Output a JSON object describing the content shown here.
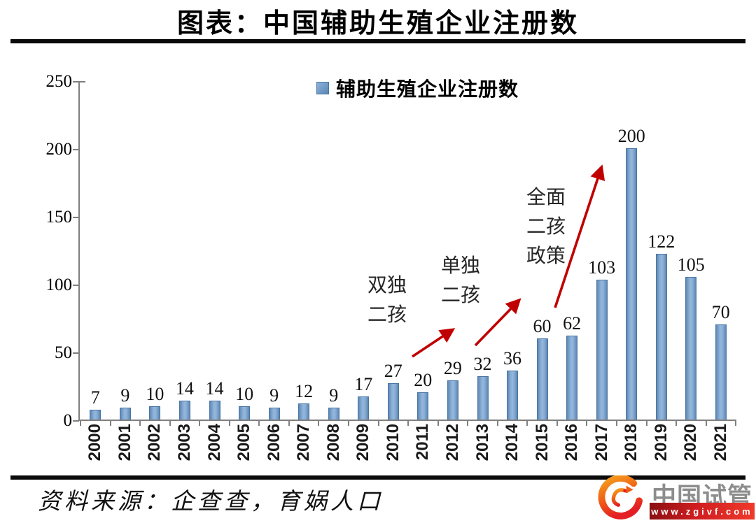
{
  "header": {
    "title": "图表：中国辅助生殖企业注册数"
  },
  "chart_data": {
    "type": "bar",
    "title": "图表：中国辅助生殖企业注册数",
    "legend": "辅助生殖企业注册数",
    "legend_position": "top-center",
    "categories": [
      "2000",
      "2001",
      "2002",
      "2003",
      "2004",
      "2005",
      "2006",
      "2007",
      "2008",
      "2009",
      "2010",
      "2011",
      "2012",
      "2013",
      "2014",
      "2015",
      "2016",
      "2017",
      "2018",
      "2019",
      "2020",
      "2021"
    ],
    "values": [
      7,
      9,
      10,
      14,
      14,
      10,
      9,
      12,
      9,
      17,
      27,
      20,
      29,
      32,
      36,
      60,
      62,
      103,
      200,
      122,
      105,
      70
    ],
    "ylim": [
      0,
      250
    ],
    "yticks": [
      0,
      50,
      100,
      150,
      200,
      250
    ],
    "grid": false,
    "bar_color": "#7aa3cd",
    "bar_edge_color": "#4a76a4",
    "arrow_color": "#c00000",
    "annotations": [
      {
        "label": "双独二孩",
        "lines": [
          "双独",
          "二孩"
        ]
      },
      {
        "label": "单独二孩",
        "lines": [
          "单独",
          "二孩"
        ]
      },
      {
        "label": "全面二孩政策",
        "lines": [
          "全面",
          "二孩",
          "政策"
        ]
      }
    ]
  },
  "footer": {
    "source": "资料来源：企查查，育娲人口"
  },
  "logo": {
    "name": "中国试管",
    "url": "www.zgivf.com"
  }
}
